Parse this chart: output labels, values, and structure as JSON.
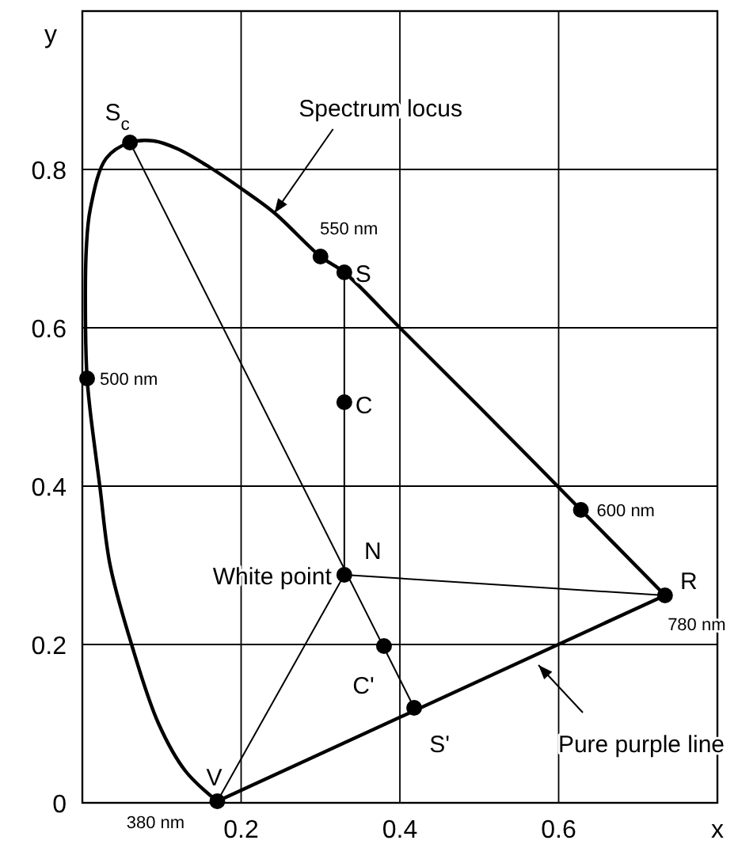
{
  "chart_data": {
    "type": "line",
    "xlabel": "x",
    "ylabel": "y",
    "xlim": [
      0,
      0.8
    ],
    "ylim": [
      0,
      1
    ],
    "xticks": [
      0.2,
      0.4,
      0.6
    ],
    "yticks": [
      0,
      0.2,
      0.4,
      0.6,
      0.8
    ],
    "grid": true,
    "series": [
      {
        "color": "#000000",
        "x": [
          0.17,
          0.13,
          0.096,
          0.062,
          0.035,
          0.022,
          0.01,
          0.006,
          0.004,
          0.005,
          0.01,
          0.03,
          0.06,
          0.09,
          0.12,
          0.16,
          0.2,
          0.242,
          0.3,
          0.33,
          0.4,
          0.5,
          0.628,
          0.734
        ],
        "values": [
          0.002,
          0.04,
          0.1,
          0.2,
          0.3,
          0.4,
          0.494,
          0.536,
          0.6,
          0.7,
          0.75,
          0.814,
          0.834,
          0.836,
          0.826,
          0.803,
          0.776,
          0.745,
          0.69,
          0.67,
          0.6,
          0.5,
          0.37,
          0.262
        ]
      },
      {
        "color": "#000000",
        "x": [
          0.17,
          0.734
        ],
        "values": [
          0.002,
          0.262
        ]
      },
      {
        "color": "#000000",
        "x": [
          0.33,
          0.33
        ],
        "values": [
          0.67,
          0.288
        ]
      },
      {
        "color": "#000000",
        "x": [
          0.06,
          0.418
        ],
        "values": [
          0.834,
          0.12
        ]
      },
      {
        "color": "#000000",
        "x": [
          0.33,
          0.734
        ],
        "values": [
          0.288,
          0.262
        ]
      },
      {
        "color": "#000000",
        "x": [
          0.33,
          0.17
        ],
        "values": [
          0.288,
          0.002
        ]
      },
      {
        "type": "scatter",
        "color": "#000000",
        "marker": "circle",
        "x": [
          0.06,
          0.3,
          0.33,
          0.006,
          0.33,
          0.628,
          0.33,
          0.734,
          0.38,
          0.418,
          0.17
        ],
        "values": [
          0.834,
          0.69,
          0.67,
          0.536,
          0.506,
          0.37,
          0.288,
          0.262,
          0.198,
          0.12,
          0.002
        ]
      }
    ],
    "annotations": [
      {
        "text": "Spectrum locus",
        "x": 0.242,
        "y": 0.745
      },
      {
        "text": "550 nm",
        "x": 0.3,
        "y": 0.69
      },
      {
        "text": "S",
        "x": 0.33,
        "y": 0.67
      },
      {
        "text": "S$_{c}$",
        "x": 0.06,
        "y": 0.834
      },
      {
        "text": "500 nm",
        "x": 0.006,
        "y": 0.536
      },
      {
        "text": "C",
        "x": 0.33,
        "y": 0.506
      },
      {
        "text": "600 nm",
        "x": 0.628,
        "y": 0.37
      },
      {
        "text": "N",
        "x": 0.33,
        "y": 0.288
      },
      {
        "text": "White point",
        "x": 0.33,
        "y": 0.288
      },
      {
        "text": "R",
        "x": 0.734,
        "y": 0.262
      },
      {
        "text": "780 nm",
        "x": 0.734,
        "y": 0.262
      },
      {
        "text": "C'",
        "x": 0.38,
        "y": 0.198
      },
      {
        "text": "S'",
        "x": 0.418,
        "y": 0.12
      },
      "Pure purple line",
      {
        "text": "V",
        "x": 0.17,
        "y": 0.002
      },
      {
        "text": "380 nm",
        "x": 0.17,
        "y": 0.002
      }
    ]
  }
}
